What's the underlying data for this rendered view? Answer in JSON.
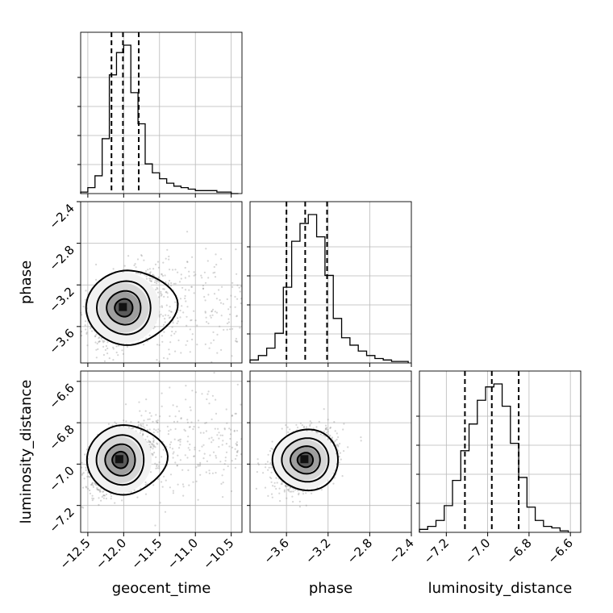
{
  "chart_data": {
    "type": "corner",
    "parameters": [
      "geocent_time",
      "phase",
      "luminosity_distance"
    ],
    "ranges": {
      "geocent_time": [
        -12.6,
        -10.35
      ],
      "phase": [
        -3.95,
        -2.4
      ],
      "luminosity_distance": [
        -7.33,
        -6.55
      ]
    },
    "ticks": {
      "geocent_time": [
        -12.5,
        -12.0,
        -11.5,
        -11.0,
        -10.5
      ],
      "phase": [
        -3.6,
        -3.2,
        -2.8,
        -2.4
      ],
      "luminosity_distance": [
        -7.2,
        -7.0,
        -6.8,
        -6.6
      ]
    },
    "tick_labels": {
      "geocent_time": [
        "−12.5",
        "−12.0",
        "−11.5",
        "−11.0",
        "−10.5"
      ],
      "phase": [
        "−3.6",
        "−3.2",
        "−2.8",
        "−2.4"
      ],
      "luminosity_distance": [
        "−7.2",
        "−7.0",
        "−6.8",
        "−6.6"
      ]
    },
    "grid": true,
    "histograms": {
      "geocent_time": {
        "bin_edges": [
          -12.6,
          -12.5,
          -12.4,
          -12.3,
          -12.2,
          -12.1,
          -12.0,
          -11.9,
          -11.8,
          -11.7,
          -11.6,
          -11.5,
          -11.4,
          -11.3,
          -11.2,
          -11.1,
          -11.0,
          -10.9,
          -10.8,
          -10.7,
          -10.6,
          -10.5,
          -10.4
        ],
        "counts": [
          0.01,
          0.04,
          0.12,
          0.37,
          0.8,
          0.95,
          1.0,
          0.68,
          0.47,
          0.2,
          0.14,
          0.1,
          0.07,
          0.05,
          0.04,
          0.03,
          0.02,
          0.02,
          0.02,
          0.01,
          0.01,
          0.0
        ],
        "quantiles": [
          -12.17,
          -12.01,
          -11.79
        ]
      },
      "phase": {
        "bin_edges": [
          -3.95,
          -3.87,
          -3.79,
          -3.71,
          -3.63,
          -3.55,
          -3.47,
          -3.39,
          -3.31,
          -3.23,
          -3.15,
          -3.07,
          -2.99,
          -2.91,
          -2.83,
          -2.75,
          -2.67,
          -2.59,
          -2.51,
          -2.43
        ],
        "counts": [
          0.02,
          0.05,
          0.1,
          0.2,
          0.51,
          0.82,
          0.94,
          1.0,
          0.85,
          0.59,
          0.3,
          0.17,
          0.12,
          0.08,
          0.05,
          0.03,
          0.02,
          0.01,
          0.01
        ],
        "quantiles": [
          -3.6,
          -3.42,
          -3.21
        ]
      },
      "luminosity_distance": {
        "bin_edges": [
          -7.33,
          -7.29,
          -7.25,
          -7.21,
          -7.17,
          -7.13,
          -7.09,
          -7.05,
          -7.01,
          -6.97,
          -6.93,
          -6.89,
          -6.85,
          -6.81,
          -6.77,
          -6.73,
          -6.69,
          -6.65,
          -6.61
        ],
        "counts": [
          0.02,
          0.04,
          0.08,
          0.18,
          0.35,
          0.55,
          0.73,
          0.89,
          0.98,
          1.0,
          0.85,
          0.6,
          0.37,
          0.17,
          0.08,
          0.04,
          0.03,
          0.01
        ],
        "quantiles": [
          -7.11,
          -6.98,
          -6.85
        ]
      }
    },
    "pairs": [
      {
        "x": "geocent_time",
        "y": "phase",
        "center": [
          -12.0,
          -3.42
        ],
        "sigma": [
          0.25,
          0.17
        ],
        "tail": "toward larger geocent_time"
      },
      {
        "x": "geocent_time",
        "y": "luminosity_distance",
        "center": [
          -12.05,
          -6.98
        ],
        "sigma": [
          0.22,
          0.08
        ],
        "tail": "toward larger geocent_time and distance"
      },
      {
        "x": "phase",
        "y": "luminosity_distance",
        "center": [
          -3.42,
          -6.98
        ],
        "sigma": [
          0.15,
          0.07
        ],
        "tail": "none"
      }
    ]
  }
}
